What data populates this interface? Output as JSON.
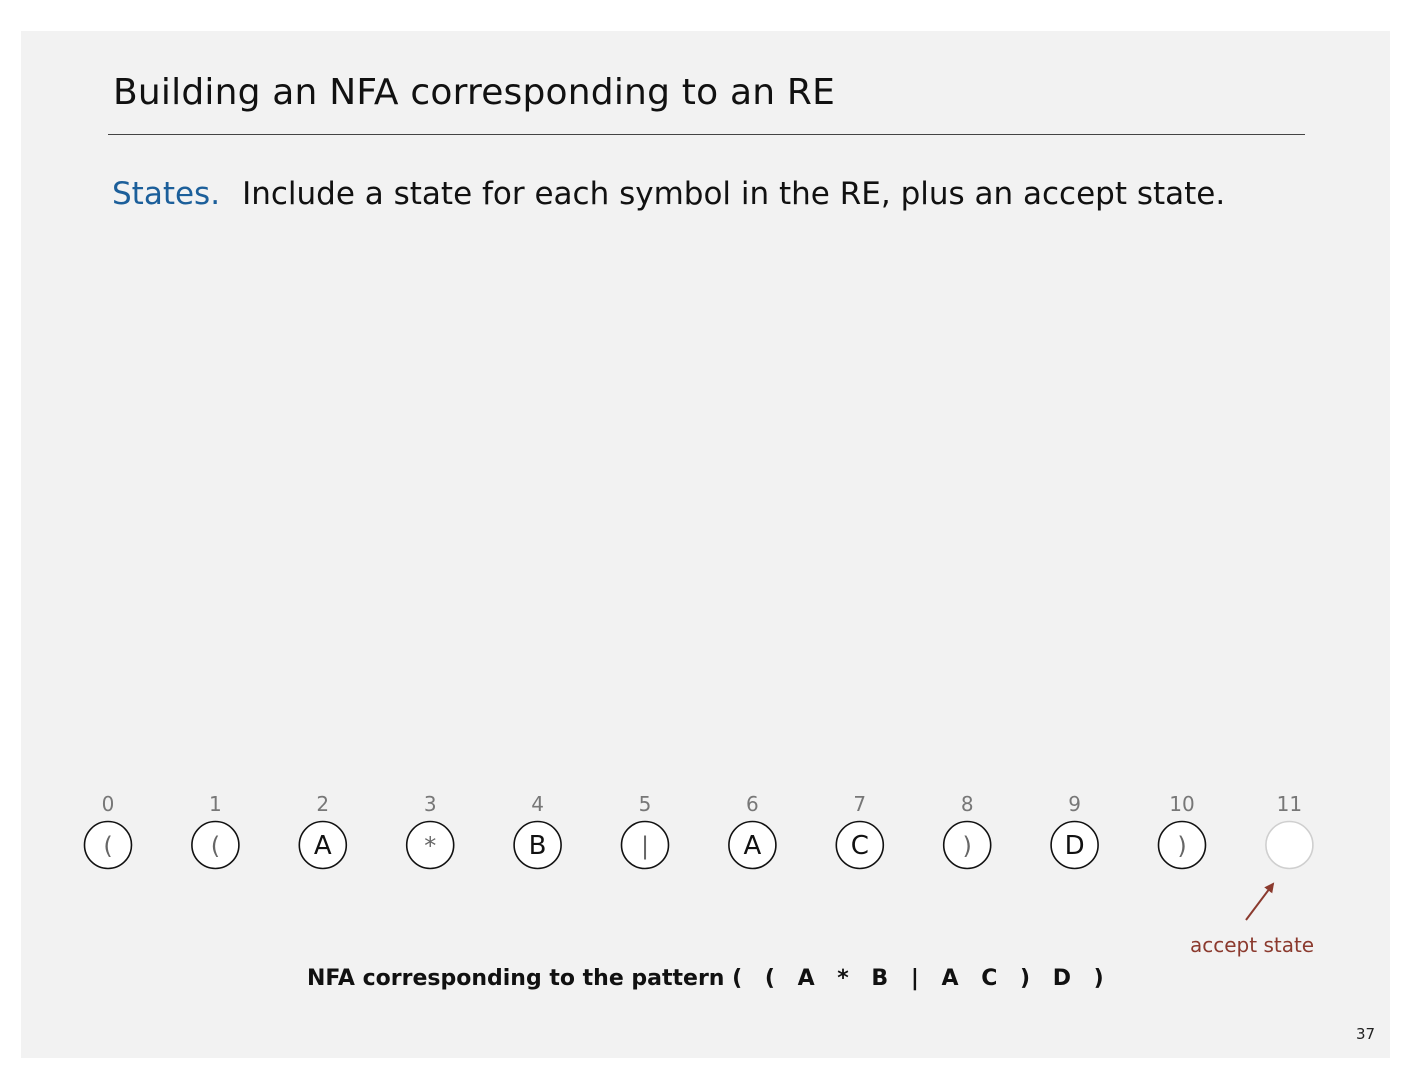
{
  "slide": {
    "title": "Building an NFA corresponding to an RE",
    "lead": "States.",
    "body": "Include a state for each symbol in the RE, plus an accept state.",
    "page_number": "37"
  },
  "nfa": {
    "states": [
      {
        "index": "0",
        "symbol": "("
      },
      {
        "index": "1",
        "symbol": "("
      },
      {
        "index": "2",
        "symbol": "A"
      },
      {
        "index": "3",
        "symbol": "*"
      },
      {
        "index": "4",
        "symbol": "B"
      },
      {
        "index": "5",
        "symbol": "|"
      },
      {
        "index": "6",
        "symbol": "A"
      },
      {
        "index": "7",
        "symbol": "C"
      },
      {
        "index": "8",
        "symbol": ")"
      },
      {
        "index": "9",
        "symbol": "D"
      },
      {
        "index": "10",
        "symbol": ")"
      },
      {
        "index": "11",
        "symbol": ""
      }
    ],
    "accept_label": "accept state",
    "caption_prefix": "NFA corresponding to the pattern",
    "caption_pattern": "( ( A * B | A C ) D )"
  },
  "colors": {
    "accent_blue": "#1c5f9a",
    "annotation_red": "#8b3a2e"
  }
}
